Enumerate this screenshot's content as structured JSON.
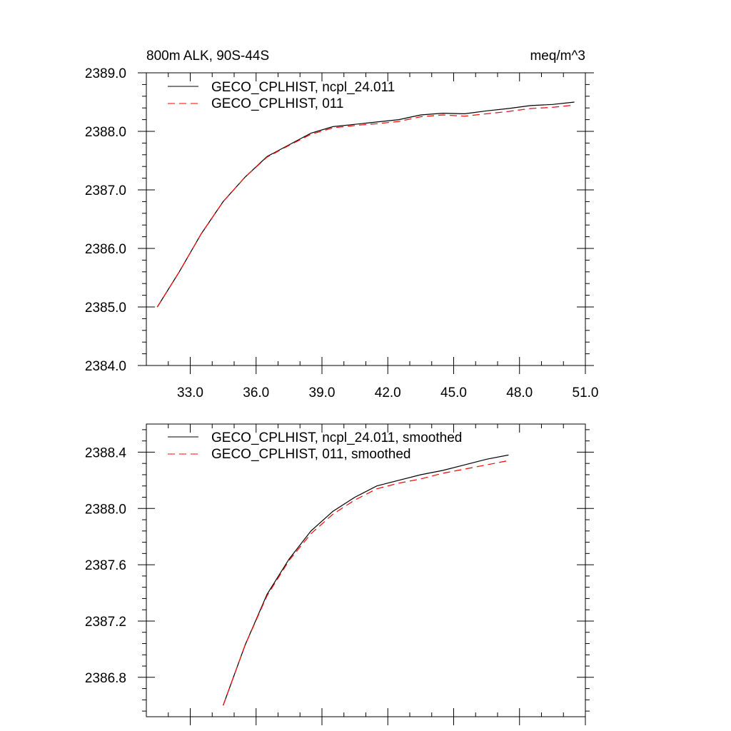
{
  "chart_data": [
    {
      "type": "line",
      "title": "800m ALK, 90S-44S",
      "units": "meq/m^3",
      "xlim": [
        31.0,
        51.0
      ],
      "ylim": [
        2384.0,
        2389.0
      ],
      "x_ticks": [
        33.0,
        36.0,
        39.0,
        42.0,
        45.0,
        48.0,
        51.0
      ],
      "x_tick_labels": [
        "33.0",
        "36.0",
        "39.0",
        "42.0",
        "45.0",
        "48.0",
        "51.0"
      ],
      "y_ticks": [
        2384.0,
        2385.0,
        2386.0,
        2387.0,
        2388.0,
        2389.0
      ],
      "y_tick_labels": [
        "2384.0",
        "2385.0",
        "2386.0",
        "2387.0",
        "2388.0",
        "2389.0"
      ],
      "legend_position": "top-left",
      "grid": false,
      "series": [
        {
          "name": "GECO_CPLHIST, ncpl_24.011",
          "color": "#000000",
          "dash": "solid",
          "x": [
            31.5,
            32.5,
            33.5,
            34.5,
            35.5,
            36.5,
            37.5,
            38.5,
            39.5,
            40.5,
            41.5,
            42.5,
            43.5,
            44.5,
            45.5,
            46.5,
            47.5,
            48.5,
            49.5,
            50.5
          ],
          "y": [
            2385.0,
            2385.6,
            2386.25,
            2386.8,
            2387.22,
            2387.57,
            2387.77,
            2387.97,
            2388.08,
            2388.12,
            2388.16,
            2388.2,
            2388.28,
            2388.31,
            2388.3,
            2388.35,
            2388.39,
            2388.44,
            2388.46,
            2388.5
          ]
        },
        {
          "name": "GECO_CPLHIST, 011",
          "color": "#ff0000",
          "dash": "dashed",
          "x": [
            31.5,
            32.5,
            33.5,
            34.5,
            35.5,
            36.5,
            37.5,
            38.5,
            39.5,
            40.5,
            41.5,
            42.5,
            43.5,
            44.5,
            45.5,
            46.5,
            47.5,
            48.5,
            49.5,
            50.5
          ],
          "y": [
            2385.0,
            2385.6,
            2386.25,
            2386.8,
            2387.22,
            2387.56,
            2387.76,
            2387.95,
            2388.06,
            2388.1,
            2388.13,
            2388.17,
            2388.25,
            2388.28,
            2388.26,
            2388.3,
            2388.34,
            2388.39,
            2388.41,
            2388.45
          ]
        }
      ]
    },
    {
      "type": "line",
      "xlim": [
        31.0,
        51.0
      ],
      "ylim": [
        2386.52,
        2388.6
      ],
      "x_ticks": [
        33.0,
        36.0,
        39.0,
        42.0,
        45.0,
        48.0,
        51.0
      ],
      "y_ticks": [
        2386.8,
        2387.2,
        2387.6,
        2388.0,
        2388.4
      ],
      "y_tick_labels": [
        "2386.8",
        "2387.2",
        "2387.6",
        "2388.0",
        "2388.4"
      ],
      "legend_position": "top-left",
      "grid": false,
      "series": [
        {
          "name": "GECO_CPLHIST, ncpl_24.011, smoothed",
          "color": "#000000",
          "dash": "solid",
          "x": [
            34.5,
            35.5,
            36.5,
            37.5,
            38.5,
            39.5,
            40.5,
            41.5,
            42.5,
            43.5,
            44.5,
            45.5,
            46.5,
            47.5
          ],
          "y": [
            2386.6,
            2387.03,
            2387.39,
            2387.64,
            2387.84,
            2387.98,
            2388.08,
            2388.16,
            2388.2,
            2388.24,
            2388.27,
            2388.31,
            2388.35,
            2388.38
          ]
        },
        {
          "name": "GECO_CPLHIST, 011, smoothed",
          "color": "#ff0000",
          "dash": "dashed",
          "x": [
            34.5,
            35.5,
            36.5,
            37.5,
            38.5,
            39.5,
            40.5,
            41.5,
            42.5,
            43.5,
            44.5,
            45.5,
            46.5,
            47.5
          ],
          "y": [
            2386.6,
            2387.03,
            2387.38,
            2387.63,
            2387.82,
            2387.96,
            2388.06,
            2388.14,
            2388.18,
            2388.21,
            2388.25,
            2388.28,
            2388.31,
            2388.34
          ]
        }
      ]
    }
  ]
}
